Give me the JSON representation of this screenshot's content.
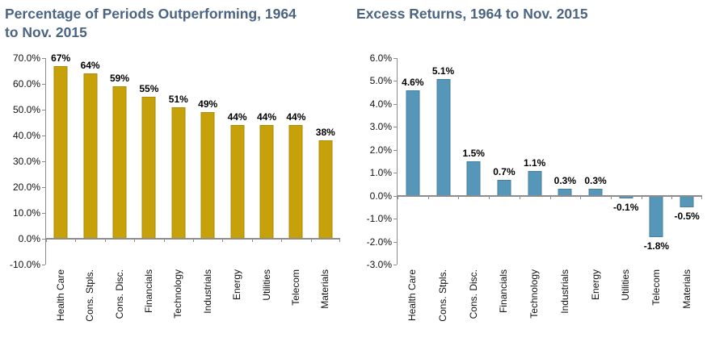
{
  "page": {
    "background_color": "#ffffff",
    "title_color": "#4A6482",
    "axis_color": "#8C8C8C",
    "label_color": "#000000"
  },
  "chart_data": [
    {
      "type": "bar",
      "title": "Percentage of Periods Outperforming, 1964 to Nov. 2015",
      "categories": [
        "Health Care",
        "Cons. Stpls.",
        "Cons. Disc.",
        "Financials",
        "Technology",
        "Industrials",
        "Energy",
        "Utilities",
        "Telecom",
        "Materials"
      ],
      "values": [
        67,
        64,
        59,
        55,
        51,
        49,
        44,
        44,
        44,
        38
      ],
      "value_labels": [
        "67%",
        "64%",
        "59%",
        "55%",
        "51%",
        "49%",
        "44%",
        "44%",
        "44%",
        "38%"
      ],
      "ylim": [
        -10,
        70
      ],
      "ytick_step": 10,
      "ytick_labels": [
        "70.0%",
        "60.0%",
        "50.0%",
        "40.0%",
        "30.0%",
        "20.0%",
        "10.0%",
        "0.0%",
        "-10.0%"
      ],
      "bar_color": "#C6A10A",
      "bar_border_color": "#AD8C09",
      "grid": false,
      "legend": "none",
      "xlabel": "",
      "ylabel": ""
    },
    {
      "type": "bar",
      "title": "Excess Returns, 1964 to Nov. 2015",
      "categories": [
        "Health Care",
        "Cons. Stpls.",
        "Cons. Disc.",
        "Financials",
        "Technology",
        "Industrials",
        "Energy",
        "Utilities",
        "Telecom",
        "Materials"
      ],
      "values": [
        4.6,
        5.1,
        1.5,
        0.7,
        1.1,
        0.3,
        0.3,
        -0.1,
        -1.8,
        -0.5
      ],
      "value_labels": [
        "4.6%",
        "5.1%",
        "1.5%",
        "0.7%",
        "1.1%",
        "0.3%",
        "0.3%",
        "-0.1%",
        "-1.8%",
        "-0.5%"
      ],
      "ylim": [
        -3,
        6
      ],
      "ytick_step": 1,
      "ytick_labels": [
        "6.0%",
        "5.0%",
        "4.0%",
        "3.0%",
        "2.0%",
        "1.0%",
        "0.0%",
        "-1.0%",
        "-2.0%",
        "-3.0%"
      ],
      "bar_color": "#5596B9",
      "bar_border_color": "#46809F",
      "grid": false,
      "legend": "none",
      "xlabel": "",
      "ylabel": ""
    }
  ]
}
